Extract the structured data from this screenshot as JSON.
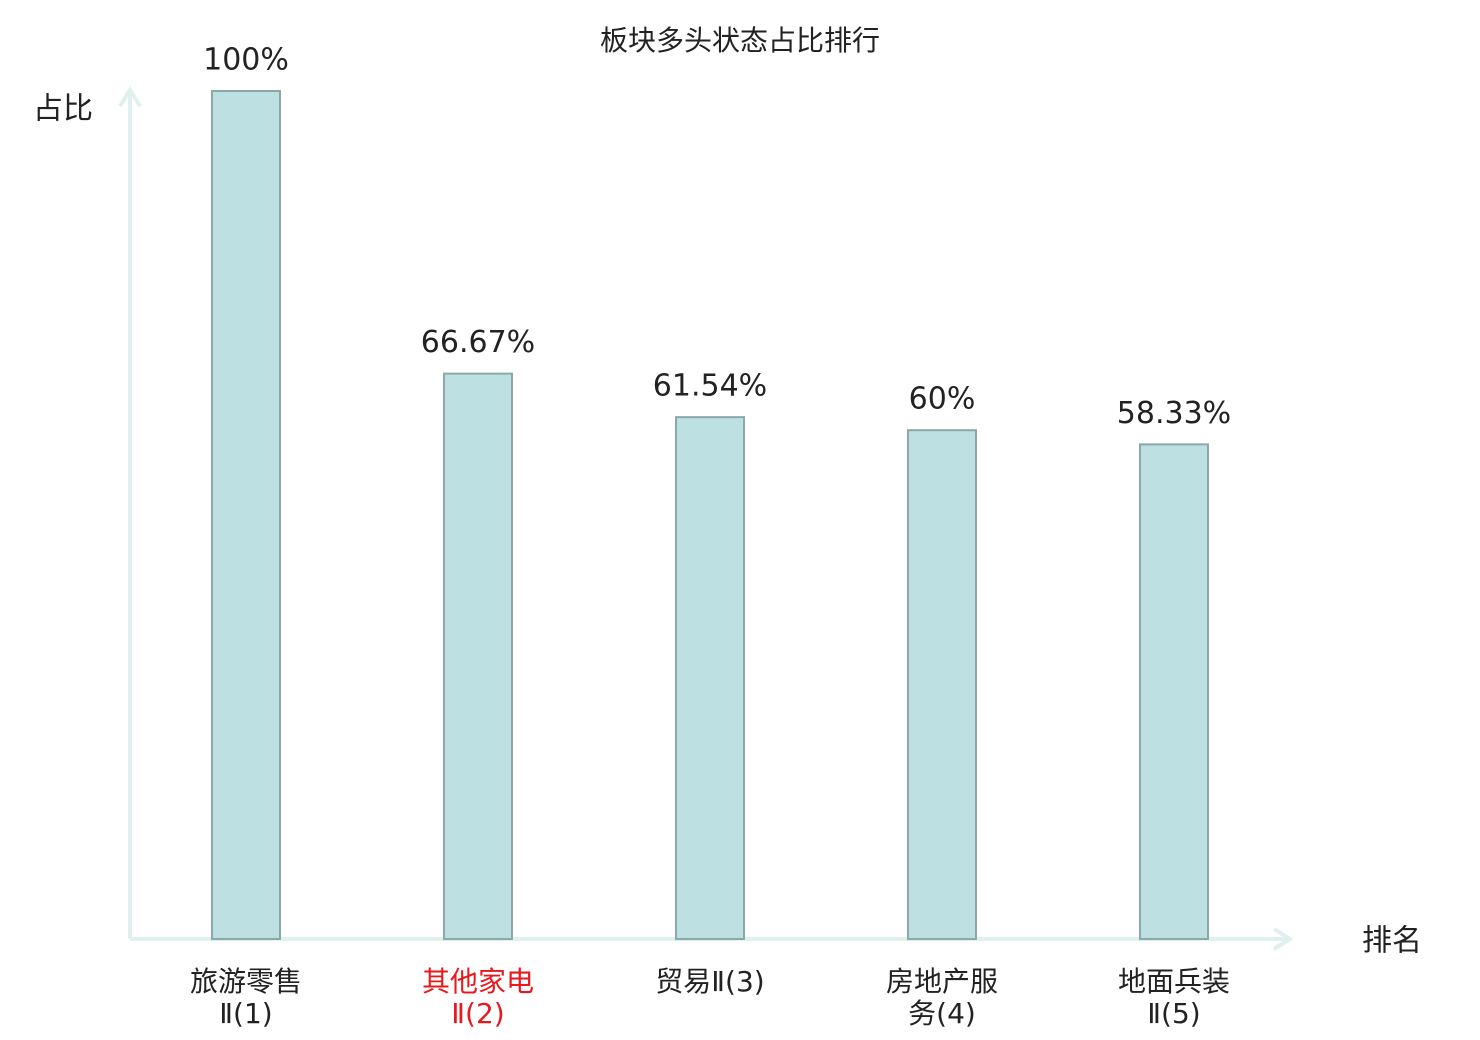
{
  "chart_data": {
    "type": "bar",
    "title": "板块多头状态占比排行",
    "y_label": "占比",
    "x_label": "排名",
    "categories": [
      "旅游零售Ⅱ(1)",
      "其他家电Ⅱ(2)",
      "贸易Ⅱ(3)",
      "房地产服务(4)",
      "地面兵装Ⅱ(5)"
    ],
    "values": [
      100,
      66.67,
      61.54,
      60,
      58.33
    ],
    "value_labels": [
      "100%",
      "66.67%",
      "61.54%",
      "60%",
      "58.33%"
    ],
    "color": "#bde0e2",
    "edge_color": "#8aa8a8",
    "axis_color": "#dff0ee",
    "highlight_index": 1,
    "highlight_color": "#e8191c",
    "ylim": [
      0,
      100
    ]
  }
}
